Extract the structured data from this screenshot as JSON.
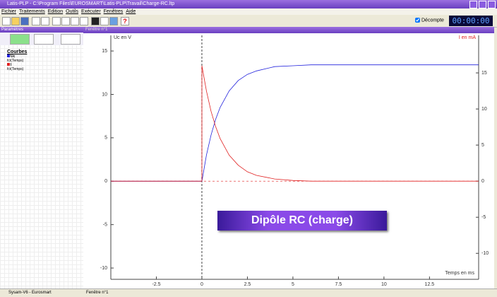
{
  "window_title": "Latis-PLP - C:\\Program Files\\EUROSMART\\Latis-PLP\\Travail\\Charge-RC.ltp",
  "menu": [
    "Fichier",
    "Traitements",
    "Edition",
    "Outils",
    "Exécuter",
    "Fenêtres",
    "Aide"
  ],
  "countdown_label": "Décompte",
  "timer": "00:00:00",
  "panel": {
    "title": "Paramètres",
    "curves_title": "Courbes",
    "curves": [
      {
        "name": "Uc",
        "def": "fct(Temps)"
      },
      {
        "name": "I",
        "def": "fct(Temps)"
      }
    ]
  },
  "chart_window_title": "Fenêtre n°1",
  "banner": "Dipôle RC (charge)",
  "status": [
    "Sysam-V6 - Eurosmart",
    "Fenêtre n°1"
  ],
  "chart_data": {
    "type": "line",
    "x_label": "Temps en ms",
    "y_label": "Uc en V",
    "y2_label": "I en mA",
    "x": [
      -5,
      -4,
      -3,
      -2,
      -1,
      0,
      0,
      0.25,
      0.5,
      0.75,
      1,
      1.5,
      2,
      2.5,
      3,
      4,
      5,
      6,
      8,
      10,
      12,
      15.2
    ],
    "series": [
      {
        "name": "Uc",
        "color": "#2222dd",
        "values": [
          0,
          0,
          0,
          0,
          0,
          0,
          0,
          3.0,
          5.3,
          7.1,
          8.5,
          10.4,
          11.6,
          12.3,
          12.7,
          13.2,
          13.3,
          13.4,
          13.4,
          13.4,
          13.4,
          13.4
        ]
      },
      {
        "name": "I",
        "color": "#e02020",
        "axis": "y2",
        "values": [
          0,
          0,
          0,
          0,
          0,
          0,
          16,
          12.5,
          9.7,
          7.6,
          5.9,
          3.6,
          2.2,
          1.3,
          0.8,
          0.3,
          0.1,
          0,
          0,
          0,
          0,
          0
        ]
      }
    ],
    "xlim": [
      -5,
      15.2
    ],
    "xticks": [
      -2.5,
      0,
      2.5,
      5,
      7.5,
      10,
      12.5
    ],
    "ylim": [
      -11.3,
      16.8
    ],
    "yticks": [
      -10,
      -5,
      0,
      5,
      10,
      15
    ],
    "y2lim": [
      -13.6,
      20.2
    ],
    "y2ticks": [
      -10,
      -5,
      0,
      5,
      10,
      15
    ]
  }
}
